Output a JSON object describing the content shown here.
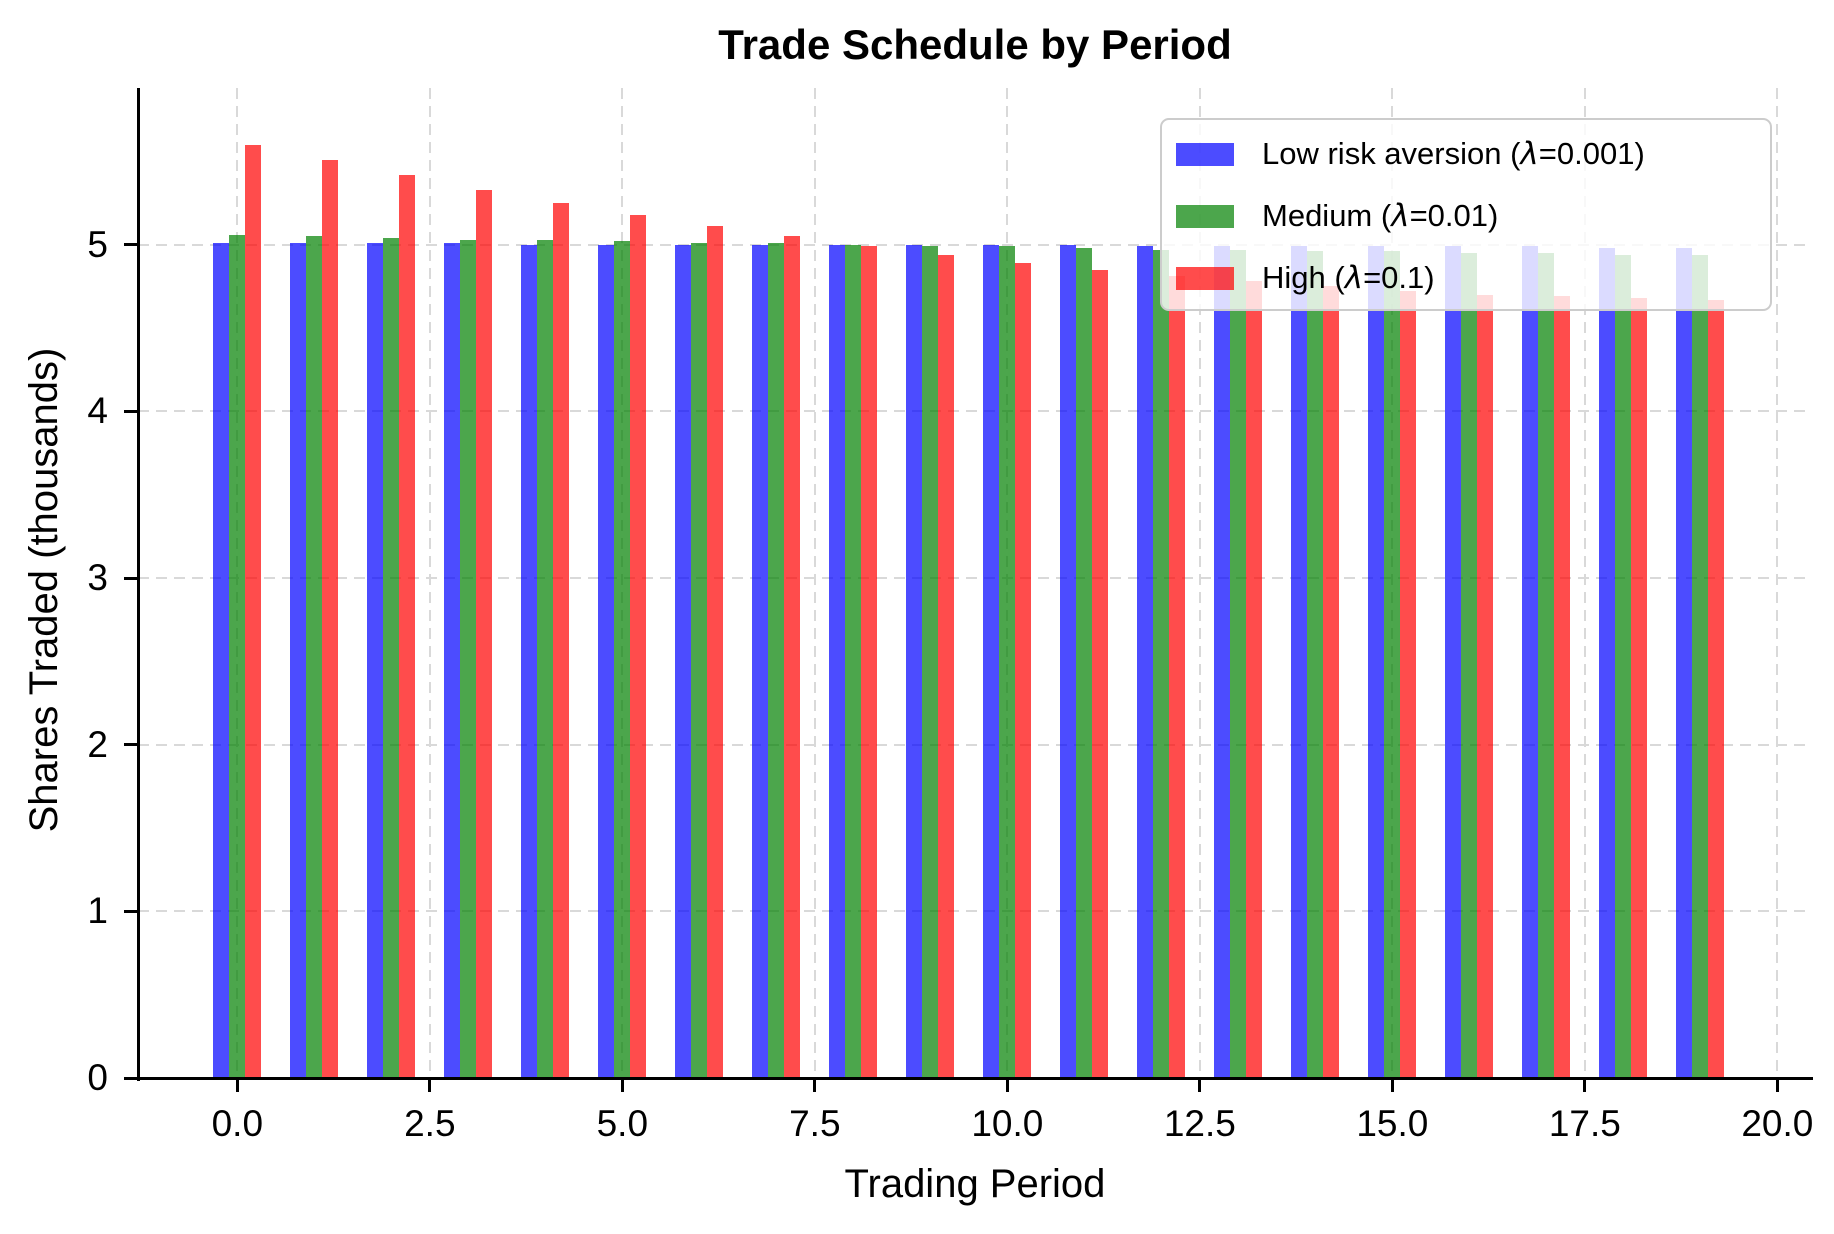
{
  "chart_data": {
    "type": "bar",
    "title": "Trade Schedule by Period",
    "xlabel": "Trading Period",
    "ylabel": "Shares Traded (thousands)",
    "categories": [
      0,
      1,
      2,
      3,
      4,
      5,
      6,
      7,
      8,
      9,
      10,
      11,
      12,
      13,
      14,
      15,
      16,
      17,
      18,
      19
    ],
    "series": [
      {
        "name": "Low risk aversion (λ=0.001)",
        "color": "rgba(0,0,255,0.7)",
        "solid_color": "#4D4DFF",
        "values": [
          5.01,
          5.01,
          5.01,
          5.01,
          5.0,
          5.0,
          5.0,
          5.0,
          5.0,
          5.0,
          5.0,
          5.0,
          4.99,
          4.99,
          4.99,
          4.99,
          4.99,
          4.99,
          4.98,
          4.98
        ]
      },
      {
        "name": "Medium (λ=0.01)",
        "color": "rgba(0,128,0,0.7)",
        "solid_color": "#4DA64D",
        "values": [
          5.06,
          5.05,
          5.04,
          5.03,
          5.03,
          5.02,
          5.01,
          5.01,
          5.0,
          4.99,
          4.99,
          4.98,
          4.97,
          4.97,
          4.96,
          4.96,
          4.95,
          4.95,
          4.94,
          4.94
        ]
      },
      {
        "name": "High (λ=0.1)",
        "color": "rgba(255,0,0,0.7)",
        "solid_color": "#FF4D4D",
        "values": [
          5.6,
          5.51,
          5.42,
          5.33,
          5.25,
          5.18,
          5.11,
          5.05,
          4.99,
          4.94,
          4.89,
          4.85,
          4.81,
          4.78,
          4.75,
          4.72,
          4.7,
          4.69,
          4.68,
          4.67
        ]
      }
    ],
    "x_ticks": [
      "0.0",
      "2.5",
      "5.0",
      "7.5",
      "10.0",
      "12.5",
      "15.0",
      "17.5",
      "20.0"
    ],
    "x_tick_values": [
      0,
      2.5,
      5,
      7.5,
      10,
      12.5,
      15,
      17.5,
      20
    ],
    "y_ticks": [
      "0",
      "1",
      "2",
      "3",
      "4",
      "5"
    ],
    "y_tick_values": [
      0,
      1,
      2,
      3,
      4,
      5
    ],
    "xlim": [
      -1.29,
      20.45
    ],
    "ylim": [
      0,
      5.94
    ],
    "grid": true,
    "grid_style": "dashed",
    "grid_color": "#d9d9d9",
    "legend_position": "upper right",
    "legend_bg": "rgba(255,255,255,0.8)",
    "legend_border_color": "#cccccc"
  }
}
